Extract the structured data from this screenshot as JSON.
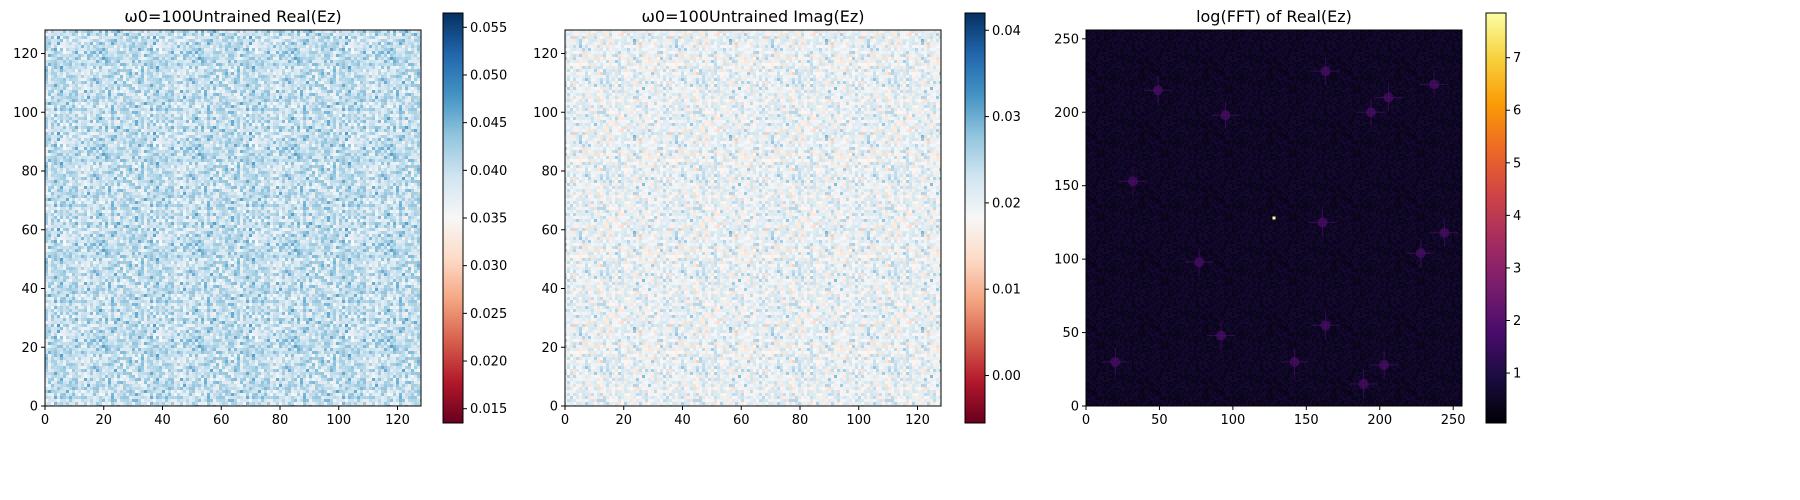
{
  "chart_data": [
    {
      "type": "heatmap",
      "title": "ω0=100Untrained Real(Ez)",
      "xlabel": "",
      "ylabel": "",
      "xlim": [
        0,
        128
      ],
      "ylim": [
        0,
        128
      ],
      "xticks": [
        "0",
        "20",
        "40",
        "60",
        "80",
        "100",
        "120"
      ],
      "yticks": [
        "0",
        "20",
        "40",
        "60",
        "80",
        "100",
        "120"
      ],
      "colormap": "RdBu",
      "colorbar": {
        "range": [
          0.0135,
          0.0565
        ],
        "ticks": [
          "0.015",
          "0.020",
          "0.025",
          "0.030",
          "0.035",
          "0.040",
          "0.045",
          "0.050",
          "0.055"
        ]
      },
      "grid": false
    },
    {
      "type": "heatmap",
      "title": "ω0=100Untrained Imag(Ez)",
      "xlabel": "",
      "ylabel": "",
      "xlim": [
        0,
        128
      ],
      "ylim": [
        0,
        128
      ],
      "xticks": [
        "0",
        "20",
        "40",
        "60",
        "80",
        "100",
        "120"
      ],
      "yticks": [
        "0",
        "20",
        "40",
        "60",
        "80",
        "100",
        "120"
      ],
      "colormap": "RdBu",
      "colorbar": {
        "range": [
          -0.0055,
          0.042
        ],
        "ticks": [
          "0.00",
          "0.01",
          "0.02",
          "0.03",
          "0.04"
        ]
      },
      "grid": false
    },
    {
      "type": "heatmap",
      "title": "log(FFT) of Real(Ez)",
      "xlabel": "",
      "ylabel": "",
      "xlim": [
        0,
        256
      ],
      "ylim": [
        0,
        256
      ],
      "xticks": [
        "0",
        "50",
        "100",
        "150",
        "200",
        "250"
      ],
      "yticks": [
        "0",
        "50",
        "100",
        "150",
        "200",
        "250"
      ],
      "colormap": "inferno",
      "colorbar": {
        "range": [
          0.05,
          7.85
        ],
        "ticks": [
          "1",
          "2",
          "3",
          "4",
          "5",
          "6",
          "7"
        ]
      },
      "grid": false
    }
  ]
}
